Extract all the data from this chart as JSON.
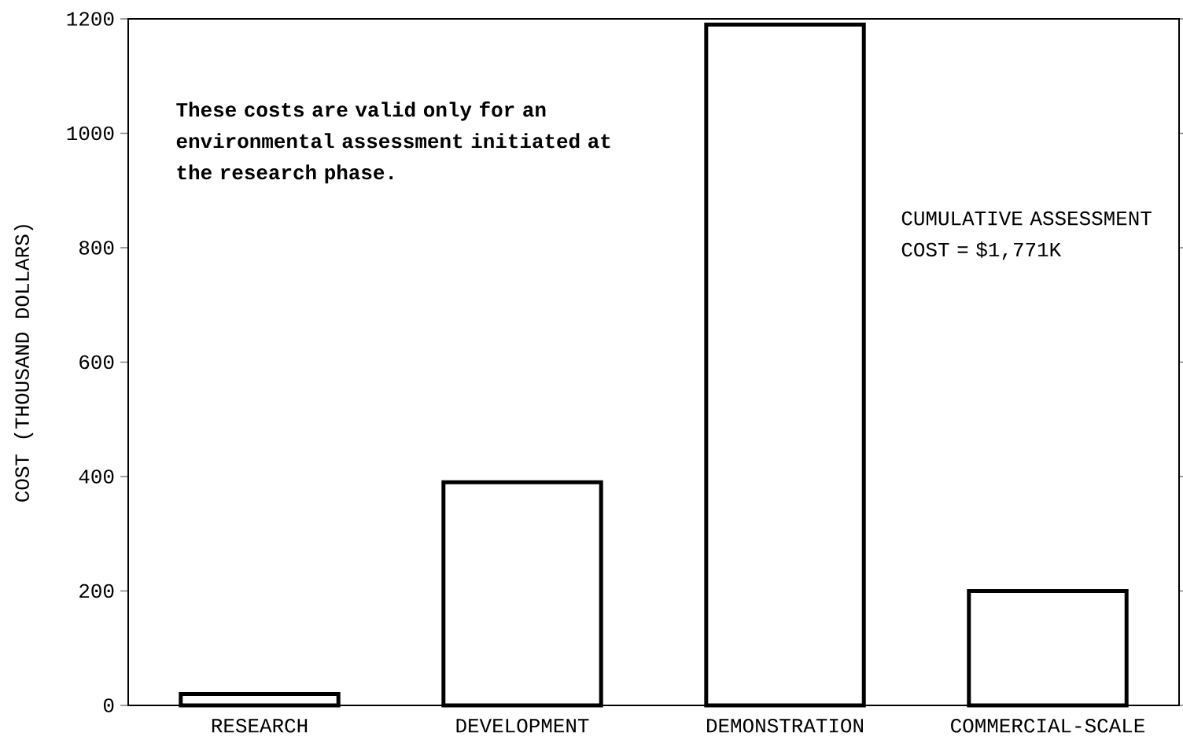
{
  "chart_data": {
    "type": "bar",
    "categories": [
      "RESEARCH",
      "DEVELOPMENT",
      "DEMONSTRATION",
      "COMMERCIAL-SCALE"
    ],
    "values": [
      20,
      390,
      1190,
      200
    ],
    "color": "#000000",
    "ylabel": "COST (THOUSAND DOLLARS)",
    "ylim": [
      0,
      1200
    ],
    "yticks": [
      0,
      200,
      400,
      600,
      800,
      1000,
      1200
    ],
    "annotations": [
      "These costs are valid only for an environmental assessment initiated at the research phase.",
      "CUMULATIVE ASSESSMENT COST = $1,771K"
    ]
  }
}
